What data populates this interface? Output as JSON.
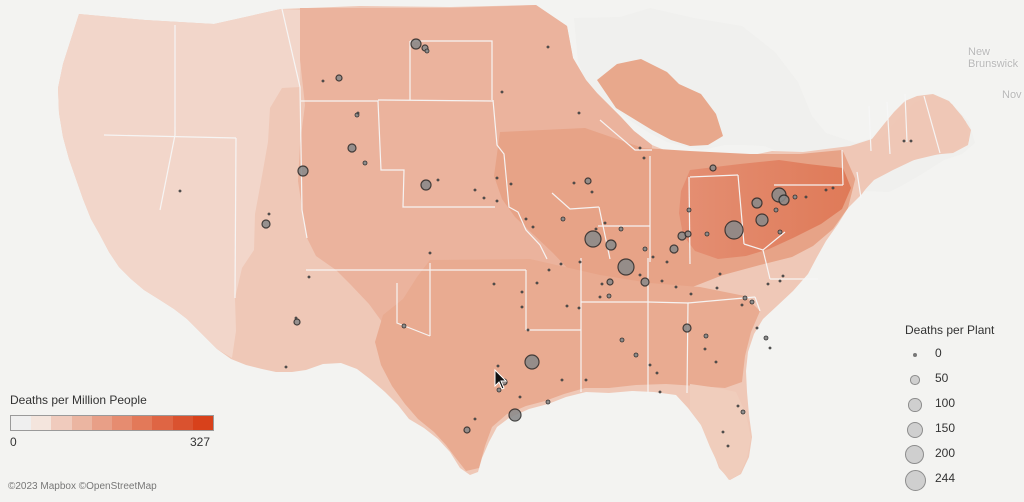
{
  "map": {
    "place_labels": {
      "new_brunswick": "New\nBrunswick",
      "nova": "Nov"
    },
    "attribution": "©2023 Mapbox ©OpenStreetMap"
  },
  "legend_color": {
    "title": "Deaths per Million People",
    "min_label": "0",
    "max_label": "327",
    "steps": [
      "#efefef",
      "#f4e5dd",
      "#f0cbbd",
      "#ebb5a1",
      "#e89f87",
      "#e68c70",
      "#e37959",
      "#df6544",
      "#da522f",
      "#d8411b"
    ]
  },
  "legend_size": {
    "title": "Deaths per Plant",
    "items": [
      {
        "label": "0",
        "value": 0
      },
      {
        "label": "50",
        "value": 50
      },
      {
        "label": "100",
        "value": 100
      },
      {
        "label": "150",
        "value": 150
      },
      {
        "label": "200",
        "value": 200
      },
      {
        "label": "244",
        "value": 244
      }
    ]
  },
  "colors": {
    "background": "#f3f3f1",
    "region_base": "#ebb9a4",
    "circle_fill": "#8a8a8a",
    "circle_stroke": "#2c2c2c",
    "pointer": "#111111"
  },
  "pointer": "cursor-icon"
}
